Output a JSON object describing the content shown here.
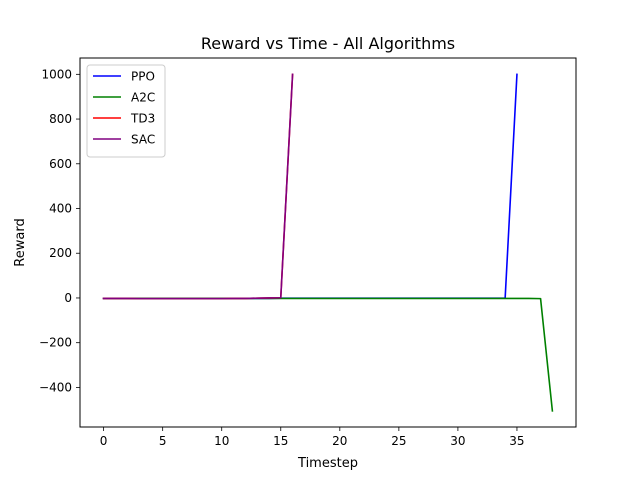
{
  "chart_data": {
    "type": "line",
    "title": "Reward vs Time - All Algorithms",
    "xlabel": "Timestep",
    "ylabel": "Reward",
    "xlim": [
      -2,
      40
    ],
    "ylim": [
      -577,
      1073
    ],
    "xticks": [
      0,
      5,
      10,
      15,
      20,
      25,
      30,
      35
    ],
    "yticks": [
      -400,
      -200,
      0,
      200,
      400,
      600,
      800,
      1000
    ],
    "ytick_labels": [
      "−400",
      "−200",
      "0",
      "200",
      "400",
      "600",
      "800",
      "1000"
    ],
    "grid": false,
    "legend_position": "top-left",
    "series": [
      {
        "name": "PPO",
        "color": "#0000ff",
        "x": [
          0,
          1,
          2,
          3,
          4,
          5,
          6,
          7,
          8,
          9,
          10,
          11,
          12,
          13,
          14,
          15,
          16,
          17,
          18,
          19,
          20,
          21,
          22,
          23,
          24,
          25,
          26,
          27,
          28,
          29,
          30,
          31,
          32,
          33,
          34,
          35
        ],
        "y": [
          -2,
          -2,
          -2,
          -2,
          -2,
          -2,
          -2,
          -2,
          -2,
          -2,
          -2,
          -2,
          -2,
          -2,
          -2,
          -1,
          -1,
          -1,
          -1,
          -1,
          -1,
          -1,
          -1,
          -1,
          -1,
          -1,
          -1,
          -1,
          -1,
          -1,
          -1,
          -1,
          -1,
          -1,
          -1,
          1000
        ]
      },
      {
        "name": "A2C",
        "color": "#008000",
        "x": [
          0,
          1,
          2,
          3,
          4,
          5,
          6,
          7,
          8,
          9,
          10,
          11,
          12,
          13,
          14,
          15,
          16,
          17,
          18,
          19,
          20,
          21,
          22,
          23,
          24,
          25,
          26,
          27,
          28,
          29,
          30,
          31,
          32,
          33,
          34,
          35,
          36,
          37,
          38
        ],
        "y": [
          -2,
          -2,
          -2,
          -2,
          -2,
          -2,
          -2,
          -2,
          -2,
          -2,
          -2,
          -2,
          -2,
          -2,
          -2,
          -2,
          -2,
          -2,
          -2,
          -2,
          -2,
          -2,
          -2,
          -2,
          -2,
          -2,
          -2,
          -2,
          -2,
          -2,
          -2,
          -2,
          -2,
          -2,
          -2,
          -2,
          -2,
          -3,
          -505
        ]
      },
      {
        "name": "TD3",
        "color": "#ff0000",
        "x": [
          0,
          1,
          2,
          3,
          4,
          5,
          6,
          7,
          8,
          9,
          10,
          11,
          12,
          13,
          14,
          15,
          16
        ],
        "y": [
          -2,
          -2,
          -2,
          -3,
          -3,
          -3,
          -3,
          -3,
          -3,
          -3,
          -3,
          -2,
          -2,
          -1,
          0,
          1,
          1000
        ]
      },
      {
        "name": "SAC",
        "color": "#800080",
        "x": [
          0,
          1,
          2,
          3,
          4,
          5,
          6,
          7,
          8,
          9,
          10,
          11,
          12,
          13,
          14,
          15,
          16
        ],
        "y": [
          -2,
          -2,
          -2,
          -3,
          -3,
          -3,
          -3,
          -3,
          -3,
          -3,
          -3,
          -2,
          -2,
          -1,
          0,
          1,
          1000
        ]
      }
    ]
  }
}
